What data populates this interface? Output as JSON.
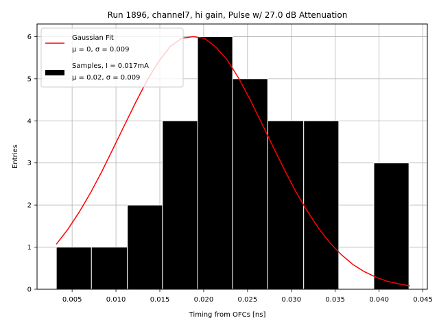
{
  "chart_data": {
    "type": "bar",
    "title": "Run 1896, channel7, hi gain, Pulse w/ 27.0 dB Attenuation",
    "xlabel": "Timing from OFCs [ns]",
    "ylabel": "Entries",
    "xlim": [
      0.001,
      0.0455
    ],
    "ylim": [
      0,
      6.3
    ],
    "xticks": [
      0.005,
      0.01,
      0.015,
      0.02,
      0.025,
      0.03,
      0.035,
      0.04,
      0.045
    ],
    "xtick_labels": [
      "0.005",
      "0.010",
      "0.015",
      "0.020",
      "0.025",
      "0.030",
      "0.035",
      "0.040",
      "0.045"
    ],
    "yticks": [
      0,
      1,
      2,
      3,
      4,
      5,
      6
    ],
    "ytick_labels": [
      "0",
      "1",
      "2",
      "3",
      "4",
      "5",
      "6"
    ],
    "grid": true,
    "legend_position": "top-left",
    "histogram": {
      "name": "Samples, I = 0.017mA",
      "name_line2": "μ = 0.02, σ = 0.009",
      "color": "#000000",
      "edge_color": "#ffffff",
      "bins": [
        {
          "x0": 0.0032,
          "x1": 0.0072,
          "count": 1
        },
        {
          "x0": 0.0072,
          "x1": 0.0113,
          "count": 1
        },
        {
          "x0": 0.0113,
          "x1": 0.0153,
          "count": 2
        },
        {
          "x0": 0.0153,
          "x1": 0.0193,
          "count": 4
        },
        {
          "x0": 0.0193,
          "x1": 0.0233,
          "count": 6
        },
        {
          "x0": 0.0233,
          "x1": 0.0273,
          "count": 5
        },
        {
          "x0": 0.0273,
          "x1": 0.0314,
          "count": 4
        },
        {
          "x0": 0.0314,
          "x1": 0.0354,
          "count": 4
        },
        {
          "x0": 0.0354,
          "x1": 0.0394,
          "count": 0
        },
        {
          "x0": 0.0394,
          "x1": 0.0434,
          "count": 3
        }
      ]
    },
    "fit": {
      "name": "Gaussian Fit",
      "name_line2": "μ = 0, σ = 0.009",
      "color": "#ff0000",
      "x": [
        0.0032,
        0.0045,
        0.0058,
        0.0071,
        0.0084,
        0.0097,
        0.011,
        0.0123,
        0.0136,
        0.0149,
        0.0162,
        0.0175,
        0.0188,
        0.0201,
        0.0214,
        0.0227,
        0.024,
        0.0253,
        0.0266,
        0.0279,
        0.0292,
        0.0305,
        0.0318,
        0.0331,
        0.0344,
        0.0357,
        0.037,
        0.0383,
        0.0396,
        0.0409,
        0.0422,
        0.0435
      ],
      "y": [
        1.07,
        1.42,
        1.83,
        2.29,
        2.8,
        3.35,
        3.91,
        4.46,
        4.98,
        5.42,
        5.77,
        5.96,
        6.0,
        5.96,
        5.75,
        5.44,
        5.01,
        4.5,
        3.95,
        3.39,
        2.84,
        2.32,
        1.86,
        1.45,
        1.1,
        0.82,
        0.59,
        0.42,
        0.29,
        0.19,
        0.13,
        0.08
      ]
    }
  }
}
